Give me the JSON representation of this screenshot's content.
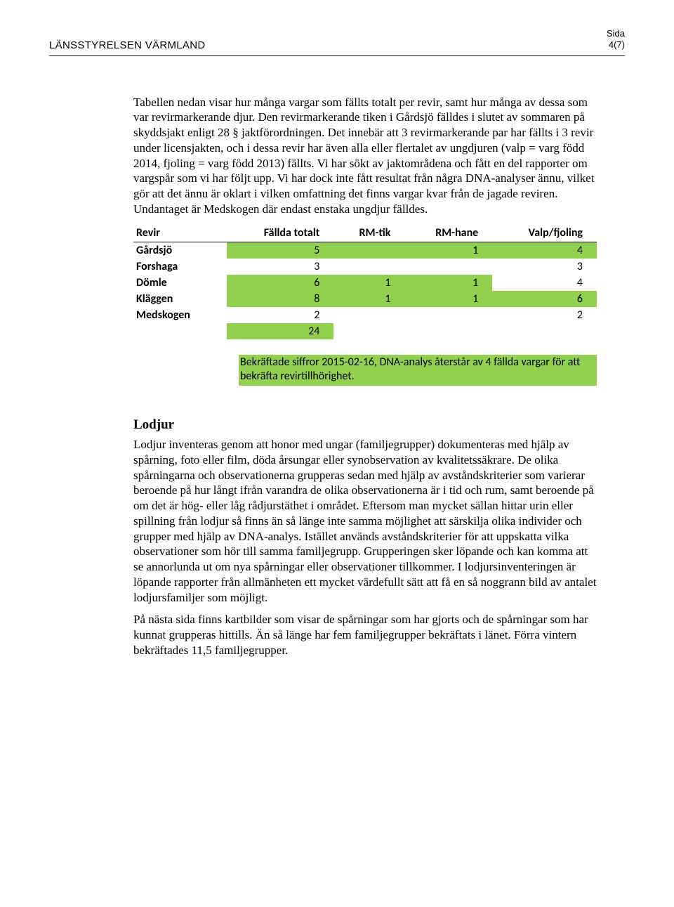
{
  "header": {
    "org": "LÄNSSTYRELSEN VÄRMLAND",
    "sida_label": "Sida",
    "page": "4(7)"
  },
  "intro_paragraph": "Tabellen nedan visar hur många vargar som fällts totalt per revir, samt hur många av dessa som var revirmarkerande djur. Den revirmarkerande tiken i Gårdsjö fälldes i slutet av sommaren på skyddsjakt enligt 28 § jaktförordningen. Det innebär att 3 revirmarkerande par har fällts i 3 revir under licensjakten, och i dessa revir har även alla eller flertalet av ungdjuren (valp = varg född 2014, fjoling = varg född 2013) fällts. Vi har sökt av jaktområdena och fått en del rapporter om vargspår som vi har följt upp. Vi har dock inte fått resultat från några DNA-analyser ännu, vilket gör att det ännu är oklart i vilken omfattning det finns vargar kvar från de jagade reviren. Undantaget är Medskogen där endast enstaka ungdjur fälldes.",
  "table": {
    "type": "table",
    "highlight_color": "#92d050",
    "columns": [
      "Revir",
      "Fällda totalt",
      "RM-tik",
      "RM-hane",
      "Valp/fjoling"
    ],
    "rows": [
      {
        "name": "Gårdsjö",
        "fallda": "5",
        "rmtik": "",
        "rmhane": "1",
        "valp": "4",
        "hl_fallda": true,
        "hl_rmtik": true,
        "hl_rmhane": true,
        "hl_valp": true
      },
      {
        "name": "Forshaga",
        "fallda": "3",
        "rmtik": "",
        "rmhane": "",
        "valp": "3",
        "hl_fallda": false,
        "hl_rmtik": false,
        "hl_rmhane": false,
        "hl_valp": false
      },
      {
        "name": "Dömle",
        "fallda": "6",
        "rmtik": "1",
        "rmhane": "1",
        "valp": "4",
        "hl_fallda": true,
        "hl_rmtik": true,
        "hl_rmhane": true,
        "hl_valp": false
      },
      {
        "name": "Kläggen",
        "fallda": "8",
        "rmtik": "1",
        "rmhane": "1",
        "valp": "6",
        "hl_fallda": true,
        "hl_rmtik": true,
        "hl_rmhane": true,
        "hl_valp": true
      },
      {
        "name": "Medskogen",
        "fallda": "2",
        "rmtik": "",
        "rmhane": "",
        "valp": "2",
        "hl_fallda": false,
        "hl_rmtik": false,
        "hl_rmhane": false,
        "hl_valp": false
      }
    ],
    "total": {
      "fallda": "24",
      "hl_fallda": true
    }
  },
  "table_note": "Bekräftade siffror 2015-02-16, DNA-analys återstår av 4 fällda vargar för att bekräfta revirtillhörighet.",
  "lodjur": {
    "heading": "Lodjur",
    "p1": "Lodjur inventeras genom att honor med ungar (familjegrupper) dokumenteras med hjälp av spårning, foto eller film, döda årsungar eller synobservation av kvalitetssäkrare. De olika spårningarna och observationerna grupperas sedan med hjälp av avståndskriterier som varierar beroende på hur långt ifrån varandra de olika observationerna är i tid och rum, samt beroende på om det är hög- eller låg rådjurstäthet i området. Eftersom man mycket sällan hittar urin eller spillning från lodjur så finns än så länge inte samma möjlighet att särskilja olika individer och grupper med hjälp av DNA-analys. Istället används avståndskriterier för att uppskatta vilka observationer som hör till samma familjegrupp. Grupperingen sker löpande och kan komma att se annorlunda ut om nya spårningar eller observationer tillkommer. I lodjursinventeringen är löpande rapporter från allmänheten ett mycket värdefullt sätt att få en så noggrann bild av antalet lodjursfamiljer som möjligt.",
    "p2": "På nästa sida finns kartbilder som visar de spårningar som har gjorts och de spårningar som har kunnat grupperas hittills. Än så länge har fem familjegrupper bekräftats i länet. Förra vintern bekräftades 11,5 familjegrupper."
  }
}
